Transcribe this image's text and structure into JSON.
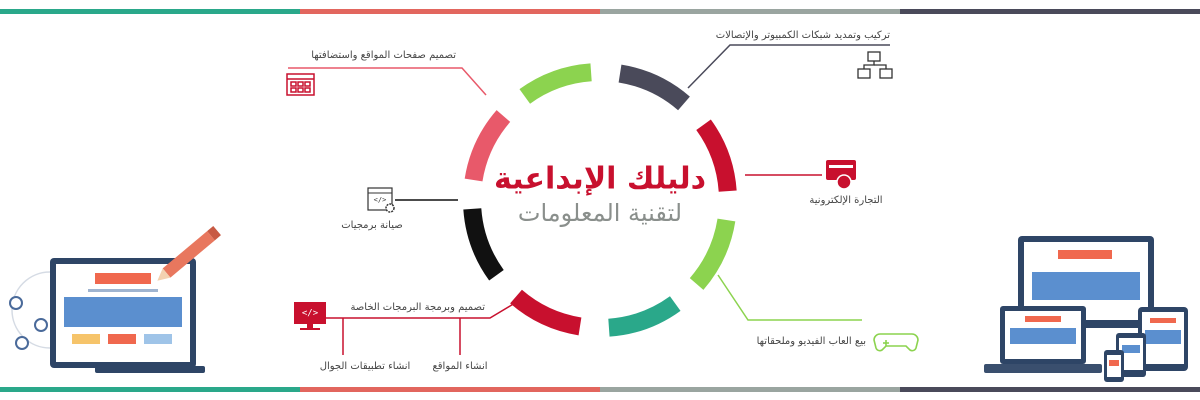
{
  "header": {
    "title": "دليلك الإبداعية",
    "subtitle": "لتقنية المعلومات"
  },
  "services": [
    {
      "label": "تركيب وتمديد شبكات الكمبيوتر والإتصالات"
    },
    {
      "label": "التجارة الإلكترونية"
    },
    {
      "label": "بيع العاب الفيديو وملحقاتها"
    },
    {
      "label": "تصميم وبرمجة البرمجات الخاصة",
      "sub": [
        "انشاء المواقع",
        "انشاء تطبيقات الجوال"
      ]
    },
    {
      "label": "صيانة برمجيات"
    },
    {
      "label": "تصميم صفحات المواقع واستضافتها"
    }
  ],
  "icons": {
    "code": "</>"
  }
}
